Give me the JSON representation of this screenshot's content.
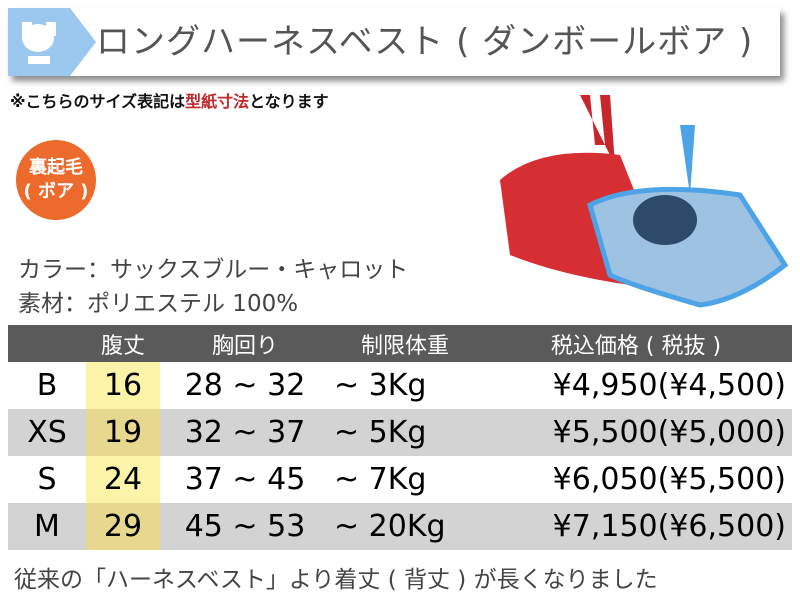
{
  "title": "ロングハーネスベスト ( ダンボールボア )",
  "note": {
    "prefix": "※こちらのサイズ表記は",
    "highlight": "型紙寸法",
    "suffix": "となります"
  },
  "badge": {
    "line1": "裏起毛",
    "line2": "( ボア )"
  },
  "color": "カラー：サックスブルー・キャロット",
  "material": "素材：ポリエステル 100%",
  "table": {
    "headers": [
      "",
      "腹丈",
      "胸回り",
      "制限体重",
      "税込価格 ( 税抜 )"
    ],
    "rows": [
      [
        "B",
        "16",
        "28 ~ 32",
        "~ 3Kg",
        "¥4,950(¥4,500)"
      ],
      [
        "XS",
        "19",
        "32 ~ 37",
        "~ 5Kg",
        "¥5,500(¥5,000)"
      ],
      [
        "S",
        "24",
        "37 ~ 45",
        "~ 7Kg",
        "¥6,050(¥5,500)"
      ],
      [
        "M",
        "29",
        "45 ~ 53",
        "~ 20Kg",
        "¥7,150(¥6,500)"
      ]
    ]
  },
  "footer": "従来の「ハーネスベスト」より着丈 ( 背丈 ) が長くなりました",
  "colors": {
    "header_bg": "#5a5a5a",
    "highlight": "#fbf3a8",
    "badge": "#ec6b2c",
    "logo": "#9cc8ef",
    "red": "#c0282c"
  }
}
